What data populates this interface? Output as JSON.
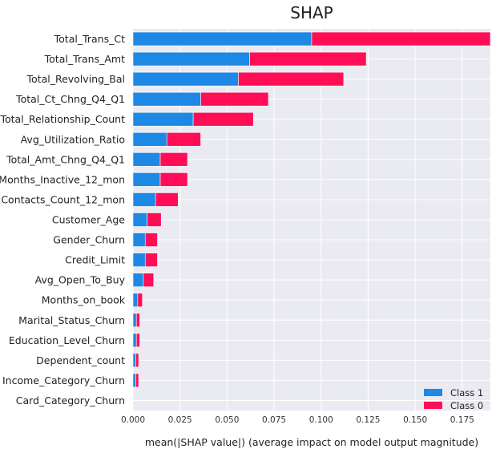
{
  "chart_data": {
    "type": "bar",
    "stacked": true,
    "orientation": "horizontal",
    "title": "SHAP",
    "xlabel": "mean(|SHAP value|) (average impact on model output magnitude)",
    "ylabel": "",
    "xlim": [
      0,
      0.19
    ],
    "xticks": [
      "0.000",
      "0.025",
      "0.050",
      "0.075",
      "0.100",
      "0.125",
      "0.150",
      "0.175"
    ],
    "grid": true,
    "legend_position": "bottom-right",
    "categories": [
      "Total_Trans_Ct",
      "Total_Trans_Amt",
      "Total_Revolving_Bal",
      "Total_Ct_Chng_Q4_Q1",
      "Total_Relationship_Count",
      "Avg_Utilization_Ratio",
      "Total_Amt_Chng_Q4_Q1",
      "Months_Inactive_12_mon",
      "Contacts_Count_12_mon",
      "Customer_Age",
      "Gender_Churn",
      "Credit_Limit",
      "Avg_Open_To_Buy",
      "Months_on_book",
      "Marital_Status_Churn",
      "Education_Level_Churn",
      "Dependent_count",
      "Income_Category_Churn",
      "Card_Category_Churn"
    ],
    "series": [
      {
        "name": "Class 1",
        "color": "#1e88e5",
        "values": [
          0.095,
          0.062,
          0.056,
          0.036,
          0.032,
          0.018,
          0.0145,
          0.0145,
          0.012,
          0.0075,
          0.0065,
          0.0065,
          0.0055,
          0.0025,
          0.0018,
          0.0018,
          0.0015,
          0.0015,
          0.0
        ]
      },
      {
        "name": "Class 0",
        "color": "#ff0d57",
        "values": [
          0.095,
          0.062,
          0.056,
          0.036,
          0.032,
          0.018,
          0.0145,
          0.0145,
          0.012,
          0.0075,
          0.0065,
          0.0065,
          0.0055,
          0.0025,
          0.0018,
          0.0018,
          0.0015,
          0.0015,
          0.0
        ]
      }
    ]
  }
}
